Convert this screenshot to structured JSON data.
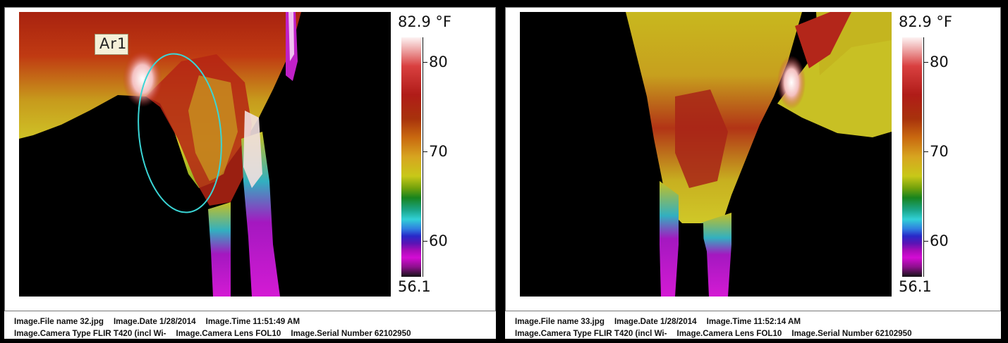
{
  "panels": [
    {
      "scale_max": "82.9 °F",
      "scale_min": "56.1",
      "ticks": [
        "80",
        "70",
        "60"
      ],
      "roi_label": "Ar1",
      "file_name": "Image.File name 32.jpg",
      "date": "Image.Date 1/28/2014",
      "time": "Image.Time 11:51:49 AM",
      "camera": "Image.Camera Type FLIR T420 (incl Wi-",
      "lens": "Image.Camera Lens FOL10",
      "serial": "Image.Serial Number 62102950"
    },
    {
      "scale_max": "82.9 °F",
      "scale_min": "56.1",
      "ticks": [
        "80",
        "70",
        "60"
      ],
      "file_name": "Image.File name 33.jpg",
      "date": "Image.Date 1/28/2014",
      "time": "Image.Time 11:52:14 AM",
      "camera": "Image.Camera Type FLIR T420 (incl Wi-",
      "lens": "Image.Camera Lens FOL10",
      "serial": "Image.Serial Number 62102950"
    }
  ],
  "colors": {
    "hot": "#fdf3f3",
    "warm": "#b01c18",
    "mid": "#c8c818",
    "cool": "#31d0d6",
    "cold": "#d40cd4",
    "roi_ellipse": "#3ad6d6"
  }
}
